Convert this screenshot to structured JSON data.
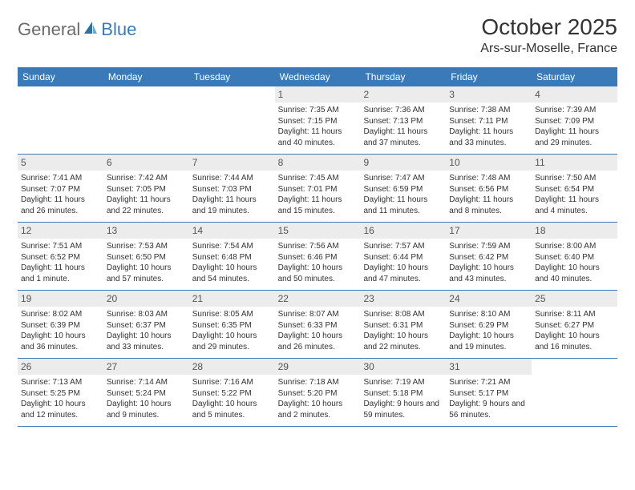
{
  "logo": {
    "general": "General",
    "blue": "Blue"
  },
  "title": "October 2025",
  "location": "Ars-sur-Moselle, France",
  "weekdays": [
    "Sunday",
    "Monday",
    "Tuesday",
    "Wednesday",
    "Thursday",
    "Friday",
    "Saturday"
  ],
  "colors": {
    "header_bg": "#3a7ab8",
    "header_text": "#ffffff",
    "daynum_bg": "#ececec",
    "rule": "#3a7ab8",
    "body_text": "#333333"
  },
  "typography": {
    "title_fontsize_pt": 21,
    "location_fontsize_pt": 12,
    "weekday_fontsize_pt": 9,
    "cell_fontsize_pt": 7.5,
    "daynum_fontsize_pt": 9
  },
  "layout": {
    "columns": 7,
    "rows": 5,
    "first_weekday_index": 3
  },
  "days": [
    {
      "n": 1,
      "sunrise": "7:35 AM",
      "sunset": "7:15 PM",
      "daylight": "11 hours and 40 minutes."
    },
    {
      "n": 2,
      "sunrise": "7:36 AM",
      "sunset": "7:13 PM",
      "daylight": "11 hours and 37 minutes."
    },
    {
      "n": 3,
      "sunrise": "7:38 AM",
      "sunset": "7:11 PM",
      "daylight": "11 hours and 33 minutes."
    },
    {
      "n": 4,
      "sunrise": "7:39 AM",
      "sunset": "7:09 PM",
      "daylight": "11 hours and 29 minutes."
    },
    {
      "n": 5,
      "sunrise": "7:41 AM",
      "sunset": "7:07 PM",
      "daylight": "11 hours and 26 minutes."
    },
    {
      "n": 6,
      "sunrise": "7:42 AM",
      "sunset": "7:05 PM",
      "daylight": "11 hours and 22 minutes."
    },
    {
      "n": 7,
      "sunrise": "7:44 AM",
      "sunset": "7:03 PM",
      "daylight": "11 hours and 19 minutes."
    },
    {
      "n": 8,
      "sunrise": "7:45 AM",
      "sunset": "7:01 PM",
      "daylight": "11 hours and 15 minutes."
    },
    {
      "n": 9,
      "sunrise": "7:47 AM",
      "sunset": "6:59 PM",
      "daylight": "11 hours and 11 minutes."
    },
    {
      "n": 10,
      "sunrise": "7:48 AM",
      "sunset": "6:56 PM",
      "daylight": "11 hours and 8 minutes."
    },
    {
      "n": 11,
      "sunrise": "7:50 AM",
      "sunset": "6:54 PM",
      "daylight": "11 hours and 4 minutes."
    },
    {
      "n": 12,
      "sunrise": "7:51 AM",
      "sunset": "6:52 PM",
      "daylight": "11 hours and 1 minute."
    },
    {
      "n": 13,
      "sunrise": "7:53 AM",
      "sunset": "6:50 PM",
      "daylight": "10 hours and 57 minutes."
    },
    {
      "n": 14,
      "sunrise": "7:54 AM",
      "sunset": "6:48 PM",
      "daylight": "10 hours and 54 minutes."
    },
    {
      "n": 15,
      "sunrise": "7:56 AM",
      "sunset": "6:46 PM",
      "daylight": "10 hours and 50 minutes."
    },
    {
      "n": 16,
      "sunrise": "7:57 AM",
      "sunset": "6:44 PM",
      "daylight": "10 hours and 47 minutes."
    },
    {
      "n": 17,
      "sunrise": "7:59 AM",
      "sunset": "6:42 PM",
      "daylight": "10 hours and 43 minutes."
    },
    {
      "n": 18,
      "sunrise": "8:00 AM",
      "sunset": "6:40 PM",
      "daylight": "10 hours and 40 minutes."
    },
    {
      "n": 19,
      "sunrise": "8:02 AM",
      "sunset": "6:39 PM",
      "daylight": "10 hours and 36 minutes."
    },
    {
      "n": 20,
      "sunrise": "8:03 AM",
      "sunset": "6:37 PM",
      "daylight": "10 hours and 33 minutes."
    },
    {
      "n": 21,
      "sunrise": "8:05 AM",
      "sunset": "6:35 PM",
      "daylight": "10 hours and 29 minutes."
    },
    {
      "n": 22,
      "sunrise": "8:07 AM",
      "sunset": "6:33 PM",
      "daylight": "10 hours and 26 minutes."
    },
    {
      "n": 23,
      "sunrise": "8:08 AM",
      "sunset": "6:31 PM",
      "daylight": "10 hours and 22 minutes."
    },
    {
      "n": 24,
      "sunrise": "8:10 AM",
      "sunset": "6:29 PM",
      "daylight": "10 hours and 19 minutes."
    },
    {
      "n": 25,
      "sunrise": "8:11 AM",
      "sunset": "6:27 PM",
      "daylight": "10 hours and 16 minutes."
    },
    {
      "n": 26,
      "sunrise": "7:13 AM",
      "sunset": "5:25 PM",
      "daylight": "10 hours and 12 minutes."
    },
    {
      "n": 27,
      "sunrise": "7:14 AM",
      "sunset": "5:24 PM",
      "daylight": "10 hours and 9 minutes."
    },
    {
      "n": 28,
      "sunrise": "7:16 AM",
      "sunset": "5:22 PM",
      "daylight": "10 hours and 5 minutes."
    },
    {
      "n": 29,
      "sunrise": "7:18 AM",
      "sunset": "5:20 PM",
      "daylight": "10 hours and 2 minutes."
    },
    {
      "n": 30,
      "sunrise": "7:19 AM",
      "sunset": "5:18 PM",
      "daylight": "9 hours and 59 minutes."
    },
    {
      "n": 31,
      "sunrise": "7:21 AM",
      "sunset": "5:17 PM",
      "daylight": "9 hours and 56 minutes."
    }
  ],
  "labels": {
    "sunrise": "Sunrise:",
    "sunset": "Sunset:",
    "daylight": "Daylight:"
  }
}
